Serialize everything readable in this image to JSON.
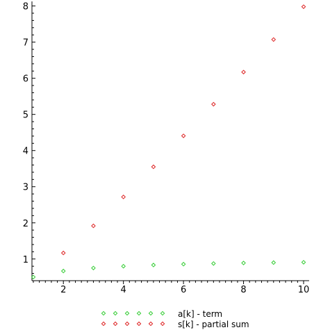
{
  "chart_data": {
    "type": "scatter",
    "xlim": [
      1,
      10
    ],
    "ylim": [
      0.4,
      8.05
    ],
    "x_ticks": [
      2,
      4,
      6,
      8,
      10
    ],
    "y_ticks": [
      1,
      2,
      3,
      4,
      5,
      6,
      7,
      8
    ],
    "x_minor_step": 0.2,
    "y_minor_step": 0.2,
    "grid": false,
    "legend_position": "bottom",
    "marker": "diamond",
    "series": [
      {
        "name": "a[k] - term",
        "color": "#33cc33",
        "x": [
          1,
          2,
          3,
          4,
          5,
          6,
          7,
          8,
          9,
          10
        ],
        "y": [
          0.5,
          0.667,
          0.75,
          0.8,
          0.833,
          0.857,
          0.875,
          0.889,
          0.9,
          0.909
        ]
      },
      {
        "name": "s[k] - partial sum",
        "color": "#dd2222",
        "x": [
          2,
          3,
          4,
          5,
          6,
          7,
          8,
          9,
          10
        ],
        "y": [
          1.167,
          1.917,
          2.717,
          3.55,
          4.407,
          5.282,
          6.171,
          7.071,
          7.98
        ]
      }
    ]
  }
}
